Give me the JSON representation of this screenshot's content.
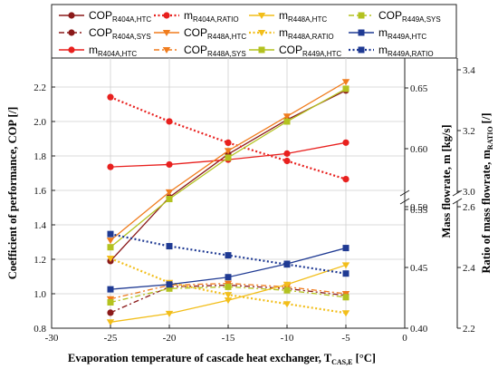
{
  "chart_data": {
    "type": "line",
    "x": [
      -25,
      -20,
      -15,
      -10,
      -5
    ],
    "xlabel": "Evaporation temperature of cascade heat exchanger, T",
    "xlabel_sub": "CAS,E",
    "xlabel_unit": " [°C]",
    "xlim": [
      -30,
      0
    ],
    "xticks": [
      "-30",
      "-25",
      "-20",
      "-15",
      "-10",
      "-5",
      "0"
    ],
    "ylabel_left": "Coefficient of performance, COP [/]",
    "ylim_left": [
      0.8,
      2.3
    ],
    "yticks_left": [
      "0.8",
      "1.0",
      "1.2",
      "1.4",
      "1.6",
      "1.8",
      "2.0",
      "2.2"
    ],
    "ylabel_mid": "Mass flowrate, m [kg/s]",
    "yticks_mid_upper": [
      "0.55",
      "0.60",
      "0.65"
    ],
    "yticks_mid_lower": [
      "0.40",
      "0.45",
      "0.50"
    ],
    "ylabel_right_main": "Ratio of mass flowrate, m",
    "ylabel_right_sub": "RATIO",
    "ylabel_right_unit": " [/]",
    "yticks_right_upper": [
      "3.0",
      "3.2",
      "3.4"
    ],
    "yticks_right_lower": [
      "2.2",
      "2.4",
      "2.6"
    ],
    "grid": true,
    "legend_placement": "top",
    "series": [
      {
        "name": "COP_R404A,HTC",
        "label": "COP",
        "sub": "R404A,HTC",
        "axis": "cop",
        "color": "#8b1a1a",
        "dash": "solid",
        "marker": "circle",
        "values": [
          1.19,
          1.56,
          1.81,
          2.01,
          2.18
        ]
      },
      {
        "name": "COP_R404A,SYS",
        "label": "COP",
        "sub": "R404A,SYS",
        "axis": "cop",
        "color": "#8b1a1a",
        "dash": "dashdot",
        "marker": "circle",
        "values": [
          0.89,
          1.04,
          1.05,
          1.03,
          0.99
        ]
      },
      {
        "name": "m_R404A,HTC",
        "label": "m",
        "sub": "R404A,HTC",
        "axis": "mass",
        "color": "#e8201e",
        "dash": "solid",
        "marker": "circle",
        "values": [
          0.585,
          0.587,
          0.591,
          0.596,
          0.605
        ]
      },
      {
        "name": "m_R404A,RATIO",
        "label": "m",
        "sub": "R404A,RATIO",
        "axis": "ratio",
        "color": "#e8201e",
        "dash": "dot",
        "marker": "circle",
        "values": [
          3.31,
          3.23,
          3.16,
          3.1,
          3.04
        ]
      },
      {
        "name": "COP_R448A,HTC",
        "label": "COP",
        "sub": "R448A,HTC",
        "axis": "cop",
        "color": "#f07c1d",
        "dash": "solid",
        "marker": "triangle",
        "values": [
          1.31,
          1.59,
          1.83,
          2.03,
          2.23
        ]
      },
      {
        "name": "COP_R448A,SYS",
        "label": "COP",
        "sub": "R448A,SYS",
        "axis": "cop",
        "color": "#f07c1d",
        "dash": "dashdot",
        "marker": "triangle",
        "values": [
          0.97,
          1.05,
          1.06,
          1.04,
          1.0
        ]
      },
      {
        "name": "m_R448A,HTC",
        "label": "m",
        "sub": "R448A,HTC",
        "axis": "mass",
        "color": "#f2be1a",
        "dash": "solid",
        "marker": "triangle",
        "values": [
          0.405,
          0.412,
          0.423,
          0.436,
          0.452
        ]
      },
      {
        "name": "m_R448A,RATIO",
        "label": "m",
        "sub": "R448A,RATIO",
        "axis": "ratio",
        "color": "#f2be1a",
        "dash": "dot",
        "marker": "triangle",
        "values": [
          2.43,
          2.35,
          2.31,
          2.28,
          2.25
        ]
      },
      {
        "name": "COP_R449A,HTC",
        "label": "COP",
        "sub": "R449A,HTC",
        "axis": "cop",
        "color": "#b3c21f",
        "dash": "solid",
        "marker": "square",
        "values": [
          1.27,
          1.55,
          1.79,
          2.0,
          2.19
        ]
      },
      {
        "name": "COP_R449A,SYS",
        "label": "COP",
        "sub": "R449A,SYS",
        "axis": "cop",
        "color": "#b3c21f",
        "dash": "dashdot",
        "marker": "square",
        "values": [
          0.95,
          1.03,
          1.04,
          1.02,
          0.98
        ]
      },
      {
        "name": "m_R449A,HTC",
        "label": "m",
        "sub": "R449A,HTC",
        "axis": "mass",
        "color": "#1f3a93",
        "dash": "solid",
        "marker": "square",
        "values": [
          0.432,
          0.436,
          0.442,
          0.453,
          0.466
        ]
      },
      {
        "name": "m_R449A,RATIO",
        "label": "m",
        "sub": "R449A,RATIO",
        "axis": "ratio",
        "color": "#1f3a93",
        "dash": "dot",
        "marker": "square",
        "values": [
          2.51,
          2.47,
          2.44,
          2.41,
          2.38
        ]
      }
    ]
  }
}
